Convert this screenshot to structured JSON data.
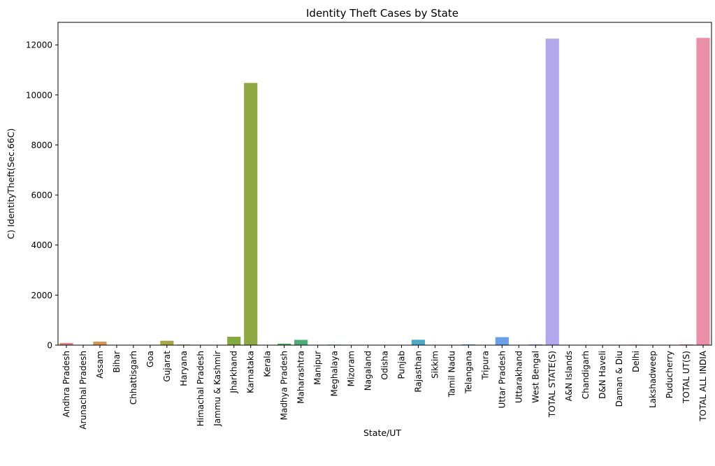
{
  "chart_data": {
    "type": "bar",
    "title": "Identity Theft Cases by State",
    "xlabel": "State/UT",
    "ylabel": "C) IdentityTheft(Sec.66C)",
    "ylim": [
      0,
      12900
    ],
    "yticks": [
      0,
      2000,
      4000,
      6000,
      8000,
      10000,
      12000
    ],
    "grid": false,
    "categories": [
      "Andhra Pradesh",
      "Arunachal Pradesh",
      "Assam",
      "Bihar",
      "Chhattisgarh",
      "Goa",
      "Gujarat",
      "Haryana",
      "Himachal Pradesh",
      "Jammu & Kashmir",
      "Jharkhand",
      "Karnataka",
      "Kerala",
      "Madhya Pradesh",
      "Maharashtra",
      "Manipur",
      "Meghalaya",
      "Mizoram",
      "Nagaland",
      "Odisha",
      "Punjab",
      "Rajasthan",
      "Sikkim",
      "Tamil Nadu",
      "Telangana",
      "Tripura",
      "Uttar Pradesh",
      "Uttarakhand",
      "West Bengal",
      "TOTAL STATE(S)",
      "A&N Islands",
      "Chandigarh",
      "D&N Haveli",
      "Daman & Diu",
      "Delhi",
      "Lakshadweep",
      "Puducherry",
      "TOTAL UT(S)",
      "TOTAL ALL INDIA"
    ],
    "values": [
      85,
      2,
      140,
      5,
      3,
      2,
      175,
      25,
      4,
      3,
      335,
      10480,
      10,
      60,
      210,
      2,
      20,
      1,
      1,
      10,
      12,
      215,
      1,
      8,
      30,
      2,
      320,
      6,
      30,
      12250,
      1,
      5,
      1,
      1,
      20,
      0,
      2,
      30,
      12280
    ],
    "colors": [
      "#e1857a",
      "#dc8c62",
      "#d69452",
      "#cb9a4d",
      "#c19f4a",
      "#b5a246",
      "#a9a643",
      "#a0a83e",
      "#96ab3b",
      "#8bad3c",
      "#82ab3d",
      "#8fa841",
      "#4fae55",
      "#4db067",
      "#4aad78",
      "#48ae89",
      "#47ae94",
      "#47ad9f",
      "#47acaa",
      "#48abb4",
      "#4aaabe",
      "#4baac7",
      "#4eaad2",
      "#52a9da",
      "#57a6df",
      "#5fa2e6",
      "#6aa0ea",
      "#7da1ee",
      "#929fee",
      "#b2a6ec",
      "#bc98ea",
      "#c793e8",
      "#d28fe5",
      "#dc8cdf",
      "#e38bd6",
      "#e68bcb",
      "#e98bbf",
      "#eb8db1",
      "#ea8fa8"
    ]
  }
}
